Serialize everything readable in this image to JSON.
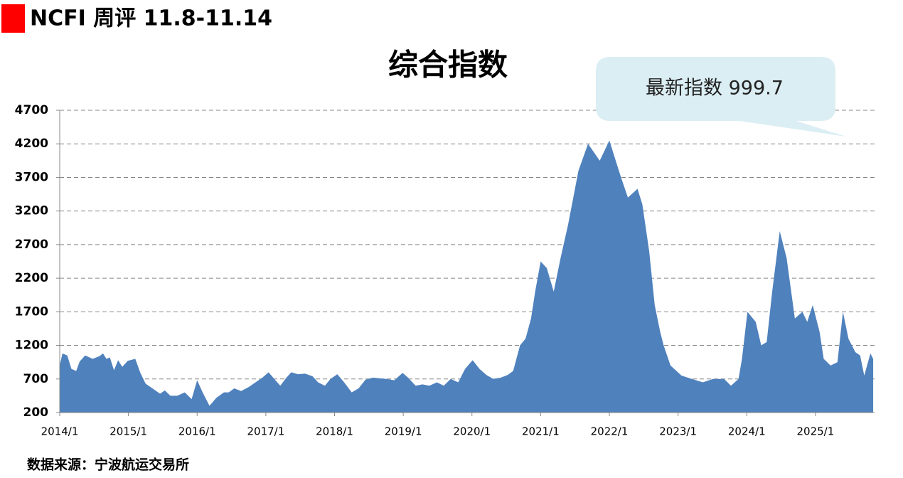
{
  "header": "NCFI 周评 11.8-11.14",
  "source": "数据来源：宁波航运交易所",
  "chart_data": {
    "type": "area",
    "title": "综合指数",
    "annotation": "最新指数 999.7",
    "color": "#4f81bd",
    "grid": true,
    "xlim": [
      2014,
      2025.86
    ],
    "ylim": [
      200,
      4700
    ],
    "yticks": [
      200,
      700,
      1200,
      1700,
      2200,
      2700,
      3200,
      3700,
      4200,
      4700
    ],
    "xticks": [
      {
        "value": 2014,
        "label": "2014/1"
      },
      {
        "value": 2015,
        "label": "2015/1"
      },
      {
        "value": 2016,
        "label": "2016/1"
      },
      {
        "value": 2017,
        "label": "2017/1"
      },
      {
        "value": 2018,
        "label": "2018/1"
      },
      {
        "value": 2019,
        "label": "2019/1"
      },
      {
        "value": 2020,
        "label": "2020/1"
      },
      {
        "value": 2021,
        "label": "2021/1"
      },
      {
        "value": 2022,
        "label": "2022/1"
      },
      {
        "value": 2023,
        "label": "2023/1"
      },
      {
        "value": 2024,
        "label": "2024/1"
      },
      {
        "value": 2025,
        "label": "2025/1"
      }
    ],
    "x": [
      2014.0,
      2014.04,
      2014.11,
      2014.17,
      2014.24,
      2014.29,
      2014.37,
      2014.48,
      2014.58,
      2014.63,
      2014.68,
      2014.73,
      2014.79,
      2014.85,
      2014.91,
      2014.99,
      2015.1,
      2015.17,
      2015.25,
      2015.35,
      2015.46,
      2015.53,
      2015.61,
      2015.71,
      2015.82,
      2015.92,
      2016.0,
      2016.08,
      2016.18,
      2016.28,
      2016.39,
      2016.46,
      2016.54,
      2016.64,
      2016.75,
      2016.85,
      2016.95,
      2017.04,
      2017.14,
      2017.21,
      2017.3,
      2017.37,
      2017.47,
      2017.57,
      2017.68,
      2017.76,
      2017.86,
      2017.94,
      2018.04,
      2018.14,
      2018.25,
      2018.35,
      2018.45,
      2018.56,
      2018.66,
      2018.76,
      2018.87,
      2018.99,
      2019.07,
      2019.18,
      2019.28,
      2019.38,
      2019.49,
      2019.59,
      2019.69,
      2019.8,
      2019.9,
      2020.01,
      2020.11,
      2020.21,
      2020.31,
      2020.42,
      2020.52,
      2020.6,
      2020.7,
      2020.78,
      2020.86,
      2020.92,
      2021.0,
      2021.09,
      2021.19,
      2021.29,
      2021.4,
      2021.55,
      2021.69,
      2021.86,
      2022.0,
      2022.17,
      2022.27,
      2022.41,
      2022.48,
      2022.58,
      2022.66,
      2022.74,
      2022.79,
      2022.89,
      2023.05,
      2023.2,
      2023.36,
      2023.51,
      2023.67,
      2023.77,
      2023.88,
      2023.93,
      2024.01,
      2024.13,
      2024.21,
      2024.29,
      2024.37,
      2024.48,
      2024.58,
      2024.62,
      2024.7,
      2024.81,
      2024.88,
      2024.96,
      2025.06,
      2025.12,
      2025.22,
      2025.32,
      2025.4,
      2025.48,
      2025.58,
      2025.65,
      2025.71,
      2025.8,
      2025.84
    ],
    "values": [
      900,
      1080,
      1050,
      850,
      820,
      960,
      1050,
      1000,
      1040,
      1080,
      1000,
      1020,
      830,
      980,
      880,
      970,
      1000,
      800,
      630,
      560,
      480,
      530,
      450,
      450,
      500,
      400,
      680,
      500,
      300,
      420,
      500,
      500,
      560,
      520,
      580,
      650,
      720,
      800,
      680,
      600,
      720,
      800,
      770,
      780,
      740,
      650,
      600,
      700,
      770,
      650,
      500,
      560,
      690,
      720,
      710,
      700,
      680,
      790,
      720,
      600,
      620,
      600,
      650,
      600,
      700,
      650,
      850,
      980,
      850,
      760,
      700,
      720,
      760,
      820,
      1200,
      1300,
      1600,
      2000,
      2450,
      2350,
      2000,
      2500,
      3000,
      3800,
      4200,
      3950,
      4250,
      3700,
      3400,
      3530,
      3300,
      2600,
      1800,
      1400,
      1200,
      900,
      750,
      700,
      650,
      700,
      700,
      600,
      700,
      1000,
      1700,
      1550,
      1200,
      1250,
      2000,
      2900,
      2500,
      2200,
      1600,
      1700,
      1550,
      1800,
      1400,
      1000,
      900,
      950,
      1700,
      1300,
      1100,
      1050,
      750,
      1080,
      999.7
    ]
  }
}
